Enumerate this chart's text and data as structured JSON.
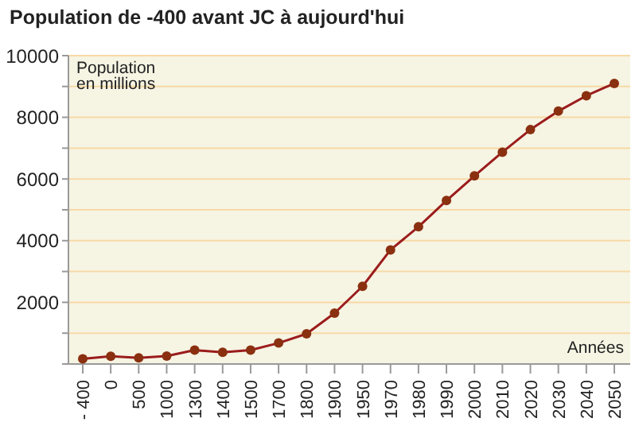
{
  "chart_data": {
    "type": "line",
    "title": "Population de -400 avant JC à aujourd'hui",
    "ylabel": "Population en millions",
    "xlabel": "Années",
    "categories": [
      "- 400",
      "0",
      "500",
      "1000",
      "1300",
      "1400",
      "1500",
      "1700",
      "1800",
      "1900",
      "1950",
      "1970",
      "1980",
      "1990",
      "2000",
      "2010",
      "2020",
      "2030",
      "2040",
      "2050"
    ],
    "values": [
      170,
      250,
      200,
      260,
      450,
      380,
      450,
      680,
      980,
      1650,
      2520,
      3700,
      4450,
      5300,
      6100,
      6870,
      7600,
      8200,
      8700,
      9100
    ],
    "color": "#9b1c1c",
    "marker": "circle",
    "grid": "y",
    "ylim": [
      0,
      10000
    ],
    "yticks": [
      {
        "value": 0,
        "label": null
      },
      {
        "value": 1000,
        "label": null
      },
      2000,
      {
        "value": 3000,
        "label": null
      },
      4000,
      {
        "value": 5000,
        "label": null
      },
      6000,
      {
        "value": 7000,
        "label": null
      },
      8000,
      {
        "value": 9000,
        "label": null
      },
      10000
    ]
  }
}
